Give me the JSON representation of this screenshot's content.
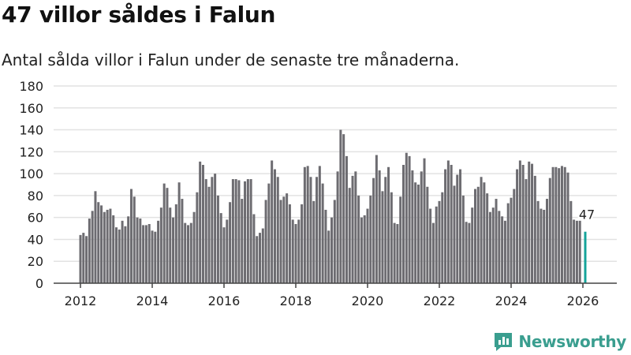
{
  "header": {
    "title": "47 villor såldes i Falun",
    "subtitle": "Antal sålda villor i Falun under de senaste tre månaderna."
  },
  "brand": {
    "name": "Newsworthy",
    "color": "#3a9e8f"
  },
  "chart_data": {
    "type": "bar",
    "title": "47 villor såldes i Falun",
    "subtitle": "Antal sålda villor i Falun under de senaste tre månaderna.",
    "xlabel": "",
    "ylabel": "",
    "ylim": [
      0,
      180
    ],
    "yticks": [
      0,
      20,
      40,
      60,
      80,
      100,
      120,
      140,
      160,
      180
    ],
    "xticks": [
      "2012",
      "2014",
      "2016",
      "2018",
      "2020",
      "2022",
      "2024",
      "2026"
    ],
    "grid": true,
    "start": "2012-01",
    "frequency": "monthly",
    "bar_color": "#6d6c71",
    "highlight_color": "#14a39a",
    "highlight_label": "47",
    "values": [
      44,
      46,
      43,
      59,
      66,
      84,
      74,
      71,
      65,
      67,
      68,
      62,
      51,
      49,
      57,
      52,
      61,
      86,
      79,
      60,
      59,
      53,
      53,
      54,
      48,
      47,
      57,
      69,
      91,
      87,
      69,
      60,
      72,
      92,
      77,
      55,
      53,
      55,
      65,
      83,
      111,
      108,
      95,
      88,
      97,
      100,
      80,
      64,
      51,
      58,
      74,
      95,
      95,
      94,
      77,
      93,
      95,
      95,
      63,
      43,
      46,
      50,
      76,
      91,
      112,
      104,
      97,
      76,
      79,
      82,
      72,
      58,
      54,
      58,
      72,
      106,
      107,
      97,
      75,
      97,
      107,
      91,
      67,
      48,
      60,
      76,
      102,
      140,
      136,
      116,
      87,
      98,
      102,
      80,
      60,
      62,
      68,
      80,
      96,
      117,
      103,
      84,
      97,
      106,
      83,
      55,
      54,
      79,
      108,
      119,
      116,
      103,
      92,
      90,
      102,
      114,
      88,
      68,
      55,
      70,
      75,
      83,
      104,
      112,
      108,
      89,
      99,
      104,
      80,
      56,
      55,
      69,
      86,
      88,
      97,
      92,
      82,
      65,
      69,
      77,
      66,
      61,
      57,
      73,
      78,
      86,
      104,
      112,
      108,
      95,
      111,
      109,
      98,
      75,
      68,
      67,
      77,
      96,
      106,
      106,
      105,
      107,
      106,
      101,
      75,
      58,
      57,
      57,
      47
    ]
  }
}
